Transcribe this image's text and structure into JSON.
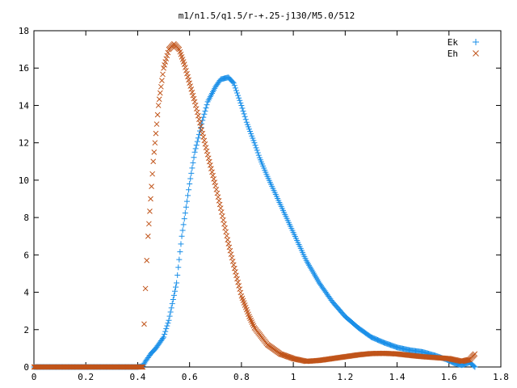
{
  "chart_data": {
    "type": "scatter",
    "title": "m1/n1.5/q1.5/r-+.25-j130/M5.0/512",
    "xlabel": "",
    "ylabel": "",
    "xlim": [
      0,
      1.8
    ],
    "ylim": [
      0,
      18
    ],
    "grid": false,
    "legend_position": "top-right",
    "x_ticks": [
      "0",
      "0.2",
      "0.4",
      "0.6",
      "0.8",
      "1",
      "1.2",
      "1.4",
      "1.6",
      "1.8"
    ],
    "y_ticks": [
      "0",
      "2",
      "4",
      "6",
      "8",
      "10",
      "12",
      "14",
      "16",
      "18"
    ],
    "series": [
      {
        "name": "Ek",
        "marker": "plus",
        "color": "#1a8fe8",
        "x": [
          0,
          0.05,
          0.1,
          0.15,
          0.2,
          0.25,
          0.3,
          0.35,
          0.4,
          0.42,
          0.43,
          0.45,
          0.47,
          0.5,
          0.52,
          0.55,
          0.57,
          0.6,
          0.62,
          0.65,
          0.67,
          0.7,
          0.72,
          0.75,
          0.77,
          0.8,
          0.82,
          0.85,
          0.87,
          0.9,
          0.95,
          1.0,
          1.05,
          1.1,
          1.15,
          1.2,
          1.25,
          1.3,
          1.35,
          1.4,
          1.45,
          1.5,
          1.55,
          1.6,
          1.62,
          1.65,
          1.68,
          1.7
        ],
        "y": [
          0,
          0,
          0,
          0,
          0,
          0,
          0,
          0,
          0,
          0.05,
          0.3,
          0.7,
          1.0,
          1.6,
          2.5,
          4.5,
          7.0,
          9.8,
          11.5,
          13.2,
          14.2,
          15.0,
          15.4,
          15.5,
          15.2,
          14.0,
          13.1,
          12.0,
          11.2,
          10.2,
          8.7,
          7.2,
          5.7,
          4.5,
          3.5,
          2.7,
          2.1,
          1.6,
          1.3,
          1.05,
          0.9,
          0.8,
          0.6,
          0.35,
          0.2,
          0.1,
          0.25,
          0.0
        ]
      },
      {
        "name": "Eh",
        "marker": "cross",
        "color": "#c0541a",
        "x": [
          0,
          0.05,
          0.1,
          0.15,
          0.2,
          0.25,
          0.3,
          0.35,
          0.4,
          0.42,
          0.425,
          0.43,
          0.435,
          0.44,
          0.45,
          0.46,
          0.47,
          0.48,
          0.5,
          0.52,
          0.54,
          0.56,
          0.58,
          0.6,
          0.62,
          0.65,
          0.68,
          0.7,
          0.72,
          0.75,
          0.78,
          0.8,
          0.83,
          0.85,
          0.9,
          0.95,
          1.0,
          1.05,
          1.1,
          1.15,
          1.2,
          1.25,
          1.3,
          1.35,
          1.4,
          1.45,
          1.5,
          1.55,
          1.6,
          1.65,
          1.68,
          1.7
        ],
        "y": [
          0,
          0,
          0,
          0,
          0,
          0,
          0,
          0,
          0,
          0,
          2.3,
          4.2,
          5.7,
          7.0,
          9.0,
          11.0,
          12.5,
          14.0,
          16.0,
          17.0,
          17.3,
          17.0,
          16.2,
          15.2,
          14.2,
          12.5,
          10.8,
          9.7,
          8.5,
          6.6,
          4.9,
          3.8,
          2.7,
          2.1,
          1.2,
          0.7,
          0.45,
          0.3,
          0.35,
          0.45,
          0.55,
          0.65,
          0.72,
          0.73,
          0.7,
          0.62,
          0.55,
          0.5,
          0.45,
          0.3,
          0.4,
          0.7
        ]
      }
    ]
  }
}
